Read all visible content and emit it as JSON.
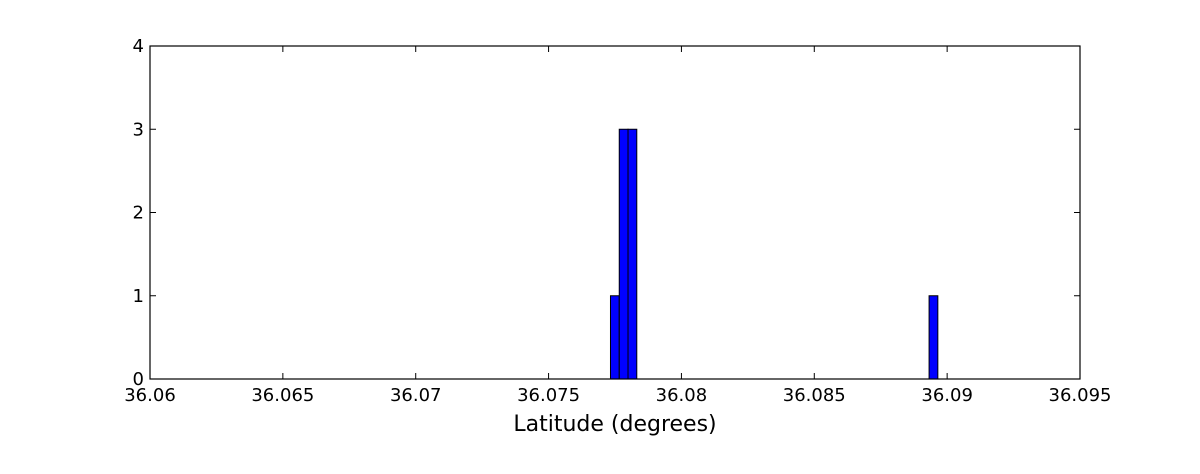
{
  "chart_data": {
    "type": "bar",
    "title": "",
    "xlabel": "Latitude (degrees)",
    "ylabel": "",
    "xlim": [
      36.06,
      36.095
    ],
    "ylim": [
      0,
      4
    ],
    "grid": false,
    "x_ticks": [
      "36.06",
      "36.065",
      "36.07",
      "36.075",
      "36.08",
      "36.085",
      "36.09",
      "36.095"
    ],
    "y_ticks": [
      "0",
      "1",
      "2",
      "3",
      "4"
    ],
    "bar_color": "#0000ff",
    "bins": [
      {
        "x0": 36.07733,
        "x1": 36.07766,
        "value": 1
      },
      {
        "x0": 36.07766,
        "x1": 36.07799,
        "value": 3
      },
      {
        "x0": 36.07799,
        "x1": 36.07832,
        "value": 3
      },
      {
        "x0": 36.08932,
        "x1": 36.08965,
        "value": 1
      }
    ]
  }
}
